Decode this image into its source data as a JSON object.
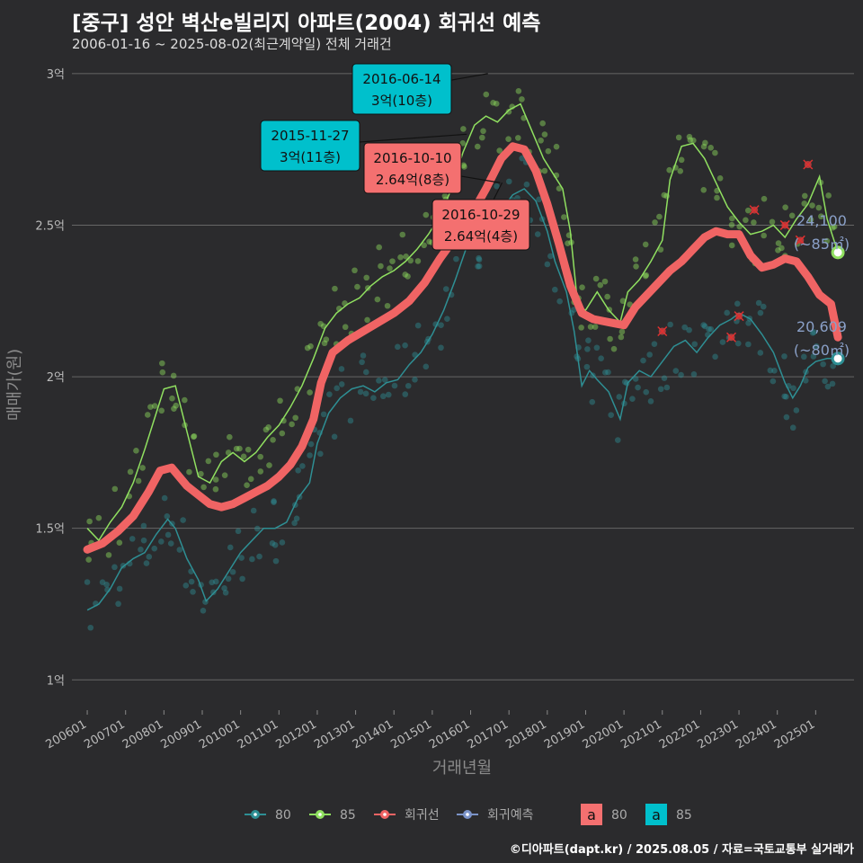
{
  "header": {
    "title": "[중구] 성안 벽산e빌리지 아파트(2004) 회귀선 예측",
    "subtitle": "2006-01-16 ~ 2025-08-02(최근계약일) 전체 거래건"
  },
  "source": "©디아파트(dapt.kr) / 2025.08.05 / 자료=국토교통부 실거래가",
  "colors": {
    "background": "#2b2b2d",
    "s80": "#2e8f94",
    "s85": "#90e060",
    "regression": "#f06464",
    "forecast": "#7b93c8",
    "label80": "#f47070",
    "label85": "#00c0cc"
  },
  "chart_data": {
    "type": "line",
    "xlabel": "거래년월",
    "ylabel": "매매가(원)",
    "x_ticks": [
      "200601",
      "200701",
      "200801",
      "200901",
      "201001",
      "201101",
      "201201",
      "201301",
      "201401",
      "201501",
      "201601",
      "201701",
      "201801",
      "201901",
      "202001",
      "202101",
      "202201",
      "202301",
      "202401",
      "202501"
    ],
    "y_ticks": [
      {
        "value": 1.0,
        "label": "1억"
      },
      {
        "value": 1.5,
        "label": "1.5억"
      },
      {
        "value": 2.0,
        "label": "2억"
      },
      {
        "value": 2.5,
        "label": "2.5억"
      },
      {
        "value": 3.0,
        "label": "3억"
      }
    ],
    "ylim": [
      0.9,
      3.05
    ],
    "xlim": [
      2005.6,
      2026.0
    ],
    "y_unit": "억",
    "series": [
      {
        "name": "80",
        "points": [
          [
            2006.0,
            1.23
          ],
          [
            2006.3,
            1.25
          ],
          [
            2006.6,
            1.3
          ],
          [
            2006.9,
            1.37
          ],
          [
            2007.2,
            1.4
          ],
          [
            2007.5,
            1.42
          ],
          [
            2007.8,
            1.48
          ],
          [
            2008.1,
            1.53
          ],
          [
            2008.3,
            1.5
          ],
          [
            2008.6,
            1.4
          ],
          [
            2008.9,
            1.33
          ],
          [
            2009.1,
            1.26
          ],
          [
            2009.4,
            1.3
          ],
          [
            2009.7,
            1.36
          ],
          [
            2010.0,
            1.42
          ],
          [
            2010.3,
            1.46
          ],
          [
            2010.6,
            1.5
          ],
          [
            2010.9,
            1.5
          ],
          [
            2011.2,
            1.52
          ],
          [
            2011.5,
            1.6
          ],
          [
            2011.8,
            1.65
          ],
          [
            2012.0,
            1.78
          ],
          [
            2012.3,
            1.88
          ],
          [
            2012.6,
            1.93
          ],
          [
            2012.9,
            1.96
          ],
          [
            2013.2,
            1.97
          ],
          [
            2013.5,
            1.95
          ],
          [
            2013.8,
            1.98
          ],
          [
            2014.1,
            1.99
          ],
          [
            2014.4,
            2.04
          ],
          [
            2014.7,
            2.08
          ],
          [
            2015.0,
            2.14
          ],
          [
            2015.3,
            2.22
          ],
          [
            2015.6,
            2.32
          ],
          [
            2015.9,
            2.43
          ],
          [
            2016.2,
            2.47
          ],
          [
            2016.5,
            2.5
          ],
          [
            2016.8,
            2.55
          ],
          [
            2017.1,
            2.6
          ],
          [
            2017.4,
            2.62
          ],
          [
            2017.7,
            2.58
          ],
          [
            2018.0,
            2.48
          ],
          [
            2018.2,
            2.38
          ],
          [
            2018.5,
            2.28
          ],
          [
            2018.7,
            2.15
          ],
          [
            2018.9,
            1.97
          ],
          [
            2019.1,
            2.02
          ],
          [
            2019.3,
            1.99
          ],
          [
            2019.6,
            1.95
          ],
          [
            2019.9,
            1.86
          ],
          [
            2020.1,
            1.98
          ],
          [
            2020.4,
            2.02
          ],
          [
            2020.7,
            2.0
          ],
          [
            2021.0,
            2.05
          ],
          [
            2021.3,
            2.1
          ],
          [
            2021.6,
            2.12
          ],
          [
            2021.9,
            2.08
          ],
          [
            2022.2,
            2.13
          ],
          [
            2022.5,
            2.17
          ],
          [
            2022.8,
            2.19
          ],
          [
            2023.0,
            2.21
          ],
          [
            2023.3,
            2.19
          ],
          [
            2023.6,
            2.14
          ],
          [
            2023.9,
            2.08
          ],
          [
            2024.2,
            1.98
          ],
          [
            2024.4,
            1.93
          ],
          [
            2024.6,
            1.97
          ],
          [
            2024.8,
            2.03
          ],
          [
            2025.0,
            2.05
          ],
          [
            2025.3,
            2.06
          ],
          [
            2025.58,
            2.06
          ]
        ]
      },
      {
        "name": "85",
        "points": [
          [
            2006.0,
            1.5
          ],
          [
            2006.3,
            1.46
          ],
          [
            2006.6,
            1.52
          ],
          [
            2006.9,
            1.57
          ],
          [
            2007.2,
            1.65
          ],
          [
            2007.5,
            1.76
          ],
          [
            2007.8,
            1.88
          ],
          [
            2008.0,
            1.96
          ],
          [
            2008.3,
            1.97
          ],
          [
            2008.6,
            1.82
          ],
          [
            2008.9,
            1.67
          ],
          [
            2009.2,
            1.65
          ],
          [
            2009.5,
            1.72
          ],
          [
            2009.8,
            1.75
          ],
          [
            2010.1,
            1.72
          ],
          [
            2010.4,
            1.75
          ],
          [
            2010.7,
            1.8
          ],
          [
            2011.0,
            1.84
          ],
          [
            2011.3,
            1.9
          ],
          [
            2011.6,
            1.97
          ],
          [
            2011.9,
            2.06
          ],
          [
            2012.2,
            2.16
          ],
          [
            2012.5,
            2.21
          ],
          [
            2012.8,
            2.24
          ],
          [
            2013.1,
            2.26
          ],
          [
            2013.4,
            2.3
          ],
          [
            2013.7,
            2.33
          ],
          [
            2014.0,
            2.35
          ],
          [
            2014.3,
            2.38
          ],
          [
            2014.6,
            2.42
          ],
          [
            2014.9,
            2.47
          ],
          [
            2015.2,
            2.53
          ],
          [
            2015.5,
            2.62
          ],
          [
            2015.8,
            2.74
          ],
          [
            2016.1,
            2.83
          ],
          [
            2016.4,
            2.86
          ],
          [
            2016.7,
            2.84
          ],
          [
            2017.0,
            2.88
          ],
          [
            2017.3,
            2.9
          ],
          [
            2017.6,
            2.81
          ],
          [
            2017.9,
            2.72
          ],
          [
            2018.1,
            2.68
          ],
          [
            2018.4,
            2.62
          ],
          [
            2018.6,
            2.48
          ],
          [
            2018.8,
            2.23
          ],
          [
            2019.0,
            2.22
          ],
          [
            2019.3,
            2.28
          ],
          [
            2019.6,
            2.22
          ],
          [
            2019.9,
            2.18
          ],
          [
            2020.1,
            2.28
          ],
          [
            2020.4,
            2.32
          ],
          [
            2020.7,
            2.38
          ],
          [
            2021.0,
            2.45
          ],
          [
            2021.2,
            2.65
          ],
          [
            2021.5,
            2.76
          ],
          [
            2021.8,
            2.77
          ],
          [
            2022.1,
            2.72
          ],
          [
            2022.4,
            2.64
          ],
          [
            2022.7,
            2.56
          ],
          [
            2023.0,
            2.51
          ],
          [
            2023.3,
            2.47
          ],
          [
            2023.6,
            2.48
          ],
          [
            2023.9,
            2.5
          ],
          [
            2024.2,
            2.46
          ],
          [
            2024.5,
            2.52
          ],
          [
            2024.8,
            2.57
          ],
          [
            2025.1,
            2.66
          ],
          [
            2025.3,
            2.52
          ],
          [
            2025.58,
            2.41
          ]
        ]
      },
      {
        "name": "회귀선",
        "points": [
          [
            2006.0,
            1.43
          ],
          [
            2006.4,
            1.45
          ],
          [
            2006.8,
            1.49
          ],
          [
            2007.2,
            1.54
          ],
          [
            2007.6,
            1.62
          ],
          [
            2007.9,
            1.69
          ],
          [
            2008.2,
            1.7
          ],
          [
            2008.6,
            1.64
          ],
          [
            2008.9,
            1.61
          ],
          [
            2009.2,
            1.58
          ],
          [
            2009.5,
            1.57
          ],
          [
            2009.8,
            1.58
          ],
          [
            2010.1,
            1.6
          ],
          [
            2010.4,
            1.62
          ],
          [
            2010.7,
            1.64
          ],
          [
            2011.0,
            1.67
          ],
          [
            2011.3,
            1.71
          ],
          [
            2011.6,
            1.77
          ],
          [
            2011.9,
            1.86
          ],
          [
            2012.1,
            1.98
          ],
          [
            2012.4,
            2.08
          ],
          [
            2012.8,
            2.12
          ],
          [
            2013.2,
            2.15
          ],
          [
            2013.6,
            2.18
          ],
          [
            2014.0,
            2.21
          ],
          [
            2014.4,
            2.25
          ],
          [
            2014.8,
            2.31
          ],
          [
            2015.2,
            2.39
          ],
          [
            2015.6,
            2.46
          ],
          [
            2016.0,
            2.53
          ],
          [
            2016.4,
            2.62
          ],
          [
            2016.8,
            2.72
          ],
          [
            2017.1,
            2.76
          ],
          [
            2017.4,
            2.75
          ],
          [
            2017.7,
            2.68
          ],
          [
            2018.0,
            2.57
          ],
          [
            2018.3,
            2.44
          ],
          [
            2018.6,
            2.3
          ],
          [
            2018.9,
            2.21
          ],
          [
            2019.2,
            2.19
          ],
          [
            2019.6,
            2.18
          ],
          [
            2020.0,
            2.17
          ],
          [
            2020.3,
            2.23
          ],
          [
            2020.6,
            2.27
          ],
          [
            2020.9,
            2.31
          ],
          [
            2021.2,
            2.35
          ],
          [
            2021.5,
            2.38
          ],
          [
            2021.8,
            2.42
          ],
          [
            2022.1,
            2.46
          ],
          [
            2022.4,
            2.48
          ],
          [
            2022.7,
            2.47
          ],
          [
            2023.0,
            2.47
          ],
          [
            2023.3,
            2.4
          ],
          [
            2023.6,
            2.36
          ],
          [
            2023.9,
            2.37
          ],
          [
            2024.2,
            2.39
          ],
          [
            2024.5,
            2.38
          ],
          [
            2024.8,
            2.33
          ],
          [
            2025.1,
            2.27
          ],
          [
            2025.4,
            2.24
          ],
          [
            2025.58,
            2.13
          ]
        ]
      }
    ],
    "legend": [
      {
        "key": "s80",
        "label": "80"
      },
      {
        "key": "s85",
        "label": "85"
      },
      {
        "key": "regression",
        "label": "회귀선"
      },
      {
        "key": "forecast",
        "label": "회귀예측"
      }
    ],
    "legend_fill": [
      {
        "key": "label80",
        "glyph": "a",
        "label": "80"
      },
      {
        "key": "label85",
        "glyph": "a",
        "label": "85"
      }
    ],
    "annotations": [
      {
        "date": "2016-06-14",
        "price": "3억(10층)",
        "x": 2016.45,
        "y": 3.0,
        "color_key": "label85"
      },
      {
        "date": "2015-11-27",
        "price": "3억(11층)",
        "x": 2015.9,
        "y": 2.8,
        "color_key": "label85"
      },
      {
        "date": "2016-10-10",
        "price": "2.64억(8층)",
        "x": 2016.77,
        "y": 2.64,
        "color_key": "label80"
      },
      {
        "date": "2016-10-29",
        "price": "2.64억(4층)",
        "x": 2016.82,
        "y": 2.64,
        "color_key": "label80"
      }
    ],
    "end_labels": [
      {
        "value": "24,100",
        "area": "(~85㎡)",
        "x": 2025.58,
        "y": 2.41
      },
      {
        "value": "20,609",
        "area": "(~80㎡)",
        "x": 2025.58,
        "y": 2.06
      }
    ],
    "outliers": [
      [
        2024.8,
        2.7
      ],
      [
        2024.2,
        2.5
      ],
      [
        2023.4,
        2.55
      ],
      [
        2024.6,
        2.45
      ],
      [
        2023.0,
        2.2
      ],
      [
        2022.8,
        2.13
      ],
      [
        2021.0,
        2.15
      ]
    ]
  }
}
